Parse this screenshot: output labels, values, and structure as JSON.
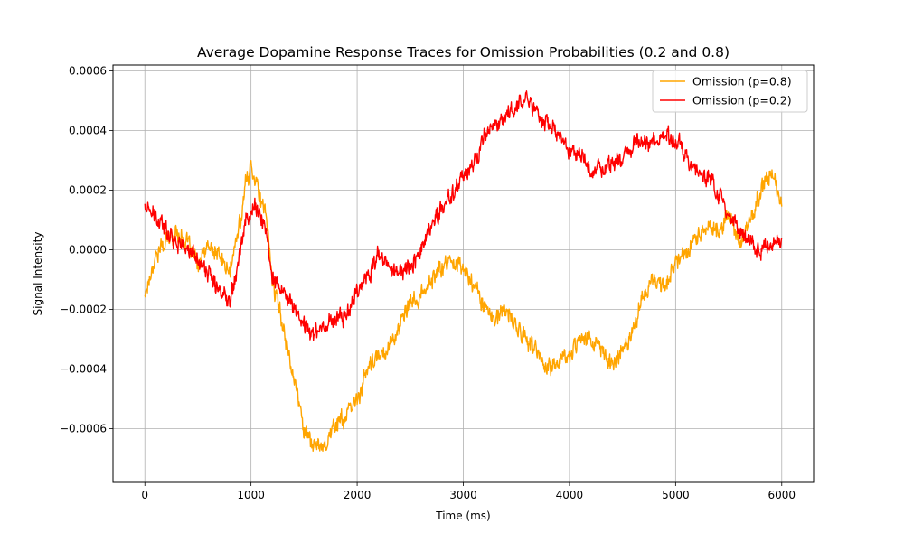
{
  "chart_data": {
    "type": "line",
    "title": "Average Dopamine Response Traces for Omission Probabilities (0.2 and 0.8)",
    "xlabel": "Time (ms)",
    "ylabel": "Signal Intensity",
    "xlim": [
      -300,
      6300
    ],
    "ylim": [
      -0.00078,
      0.00062
    ],
    "xticks": [
      0,
      1000,
      2000,
      3000,
      4000,
      5000,
      6000
    ],
    "xtick_labels": [
      "0",
      "1000",
      "2000",
      "3000",
      "4000",
      "5000",
      "6000"
    ],
    "yticks": [
      -0.0006,
      -0.0004,
      -0.0002,
      0.0,
      0.0002,
      0.0004,
      0.0006
    ],
    "ytick_labels": [
      "−0.0006",
      "−0.0004",
      "−0.0002",
      "0.0000",
      "0.0002",
      "0.0004",
      "0.0006"
    ],
    "grid": true,
    "legend_position": "upper-right",
    "series": [
      {
        "name": "Omission (p=0.8)",
        "color": "#FFA500",
        "x": [
          0,
          100,
          200,
          300,
          400,
          500,
          600,
          700,
          800,
          900,
          950,
          1000,
          1050,
          1100,
          1150,
          1200,
          1300,
          1400,
          1500,
          1600,
          1700,
          1800,
          1900,
          2000,
          2100,
          2200,
          2300,
          2400,
          2500,
          2600,
          2700,
          2800,
          2900,
          3000,
          3100,
          3200,
          3300,
          3400,
          3500,
          3600,
          3700,
          3800,
          3900,
          4000,
          4100,
          4200,
          4300,
          4400,
          4500,
          4600,
          4700,
          4800,
          4900,
          5000,
          5100,
          5200,
          5300,
          5400,
          5500,
          5600,
          5700,
          5800,
          5900,
          6000
        ],
        "values": [
          -0.00015,
          -2e-05,
          3e-05,
          6e-05,
          2e-05,
          -5e-05,
          1e-05,
          -2e-05,
          -8e-05,
          0.0001,
          0.00022,
          0.00028,
          0.00024,
          0.00015,
          0.0001,
          -0.0001,
          -0.00025,
          -0.00042,
          -0.0006,
          -0.00066,
          -0.00065,
          -0.00058,
          -0.00056,
          -0.0005,
          -0.0004,
          -0.00036,
          -0.00032,
          -0.00026,
          -0.00018,
          -0.00016,
          -0.0001,
          -6e-05,
          -3e-05,
          -6e-05,
          -0.00012,
          -0.00018,
          -0.00024,
          -0.0002,
          -0.00026,
          -0.0003,
          -0.00035,
          -0.0004,
          -0.00037,
          -0.00036,
          -0.00028,
          -0.0003,
          -0.00034,
          -0.00038,
          -0.00034,
          -0.00026,
          -0.00015,
          -0.0001,
          -0.00012,
          -4e-05,
          0.0,
          4e-05,
          8e-05,
          6e-05,
          0.00012,
          3e-05,
          8e-05,
          0.0002,
          0.00026,
          0.00015
        ]
      },
      {
        "name": "Omission (p=0.2)",
        "color": "#FF0000",
        "x": [
          0,
          100,
          200,
          300,
          400,
          500,
          600,
          700,
          800,
          900,
          950,
          1000,
          1050,
          1100,
          1150,
          1200,
          1300,
          1400,
          1500,
          1600,
          1700,
          1800,
          1900,
          2000,
          2100,
          2200,
          2300,
          2400,
          2500,
          2600,
          2700,
          2800,
          2900,
          3000,
          3100,
          3200,
          3300,
          3400,
          3500,
          3600,
          3700,
          3800,
          3900,
          4000,
          4100,
          4200,
          4300,
          4400,
          4500,
          4600,
          4700,
          4800,
          4900,
          5000,
          5100,
          5200,
          5300,
          5400,
          5500,
          5600,
          5700,
          5800,
          5900,
          6000
        ],
        "values": [
          0.00015,
          0.0001,
          7e-05,
          3e-05,
          0.0,
          -3e-05,
          -8e-05,
          -0.00014,
          -0.00016,
          0.0,
          0.0001,
          0.00013,
          0.00015,
          0.0001,
          4e-05,
          -8e-05,
          -0.00015,
          -0.00019,
          -0.00025,
          -0.00028,
          -0.00025,
          -0.00023,
          -0.00022,
          -0.00013,
          -9e-05,
          -2e-05,
          -6e-05,
          -8e-05,
          -5e-05,
          0.0,
          8e-05,
          0.00014,
          0.00019,
          0.00025,
          0.00028,
          0.00038,
          0.00042,
          0.00045,
          0.00048,
          0.00051,
          0.00046,
          0.00042,
          0.00038,
          0.00033,
          0.00031,
          0.00026,
          0.00027,
          0.00029,
          0.00032,
          0.00035,
          0.00037,
          0.00036,
          0.00038,
          0.00037,
          0.00031,
          0.00026,
          0.00024,
          0.00019,
          0.00012,
          6e-05,
          2e-05,
          0.0,
          1e-05,
          3e-05
        ]
      }
    ]
  }
}
